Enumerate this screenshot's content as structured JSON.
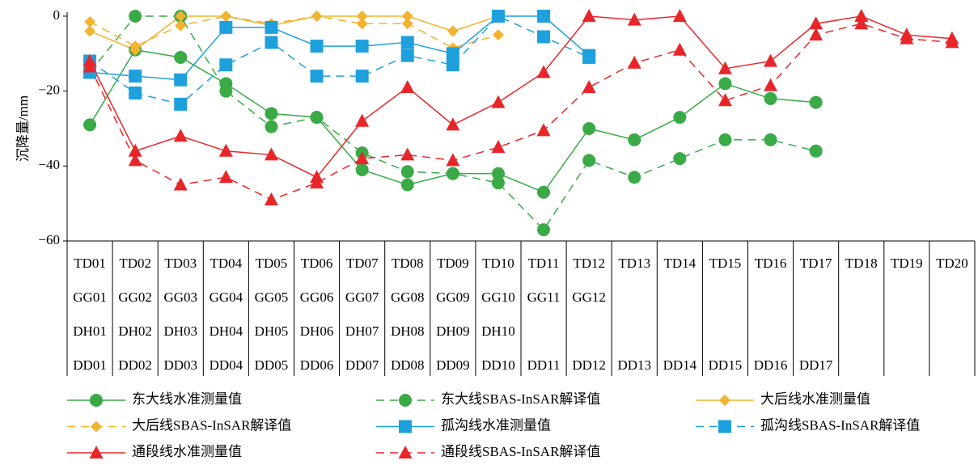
{
  "chart_data": {
    "type": "line",
    "y_label": "沉降量/mm",
    "categories": [
      "TD01",
      "TD02",
      "TD03",
      "TD04",
      "TD05",
      "TD06",
      "TD07",
      "TD08",
      "TD09",
      "TD10",
      "TD11",
      "TD12",
      "TD13",
      "TD14",
      "TD15",
      "TD16",
      "TD17",
      "TD18",
      "TD19",
      "TD20"
    ],
    "category_rows": [
      [
        "GG01",
        "GG02",
        "GG03",
        "GG04",
        "GG05",
        "GG06",
        "GG07",
        "GG08",
        "GG09",
        "GG10",
        "GG11",
        "GG12"
      ],
      [
        "DH01",
        "DH02",
        "DH03",
        "DH04",
        "DH05",
        "DH06",
        "DH07",
        "DH08",
        "DH09",
        "DH10"
      ],
      [
        "DD01",
        "DD02",
        "DD03",
        "DD04",
        "DD05",
        "DD06",
        "DD07",
        "DD08",
        "DD09",
        "DD10",
        "DD11",
        "DD12",
        "DD13",
        "DD14",
        "DD15",
        "DD16",
        "DD17"
      ]
    ],
    "ylim": [
      -60,
      0
    ],
    "yticks": [
      {
        "value": -60,
        "label": "−60"
      },
      {
        "value": -40,
        "label": "−40"
      },
      {
        "value": -20,
        "label": "−20"
      },
      0
    ],
    "series": [
      {
        "name": "东大线水准测量值",
        "color": "#3aaa47",
        "marker": "circle",
        "dashed": false,
        "values": [
          -29,
          -9,
          -11,
          -18,
          -26,
          -27,
          -41,
          -45,
          -42,
          -42,
          -47,
          -30,
          -33,
          -27,
          -18,
          -22,
          -23,
          null,
          null,
          null
        ]
      },
      {
        "name": "东大线SBAS-InSAR解译值",
        "color": "#3aaa47",
        "marker": "circle",
        "dashed": true,
        "values": [
          -15,
          0,
          0,
          -20,
          -29.5,
          -27,
          -36.5,
          -41.5,
          -42,
          -44.5,
          -57,
          -38.5,
          -43,
          -38,
          -33,
          -33,
          -36,
          null,
          null,
          null
        ]
      },
      {
        "name": "大后线水准测量值",
        "color": "#f2b32e",
        "marker": "diamond",
        "dashed": false,
        "values": [
          -4,
          -9,
          0,
          0,
          -2.5,
          0,
          0,
          0,
          -4,
          0,
          null,
          null,
          null,
          null,
          null,
          null,
          null,
          null,
          null,
          null
        ]
      },
      {
        "name": "大后线SBAS-InSAR解译值",
        "color": "#f2b32e",
        "marker": "diamond",
        "dashed": true,
        "values": [
          -1.5,
          -8,
          -2.5,
          0,
          -2,
          0,
          -2,
          -2,
          -8.5,
          -5,
          null,
          null,
          null,
          null,
          null,
          null,
          null,
          null,
          null,
          null
        ]
      },
      {
        "name": "孤沟线水准测量值",
        "color": "#1ea0dc",
        "marker": "square",
        "dashed": false,
        "values": [
          -15,
          -16,
          -17,
          -3,
          -3,
          -8,
          -8,
          -7,
          -10,
          0,
          0,
          -10.5,
          null,
          null,
          null,
          null,
          null,
          null,
          null,
          null
        ]
      },
      {
        "name": "孤沟线SBAS-InSAR解译值",
        "color": "#1ea0dc",
        "marker": "square",
        "dashed": true,
        "values": [
          -12,
          -20.5,
          -23.5,
          -13,
          -7,
          -16,
          -16,
          -10.5,
          -13,
          0,
          -5.5,
          -11,
          null,
          null,
          null,
          null,
          null,
          null,
          null,
          null
        ]
      },
      {
        "name": "通段线水准测量值",
        "color": "#e8262a",
        "marker": "triangle",
        "dashed": false,
        "values": [
          -12,
          -36,
          -32,
          -36,
          -37,
          -43,
          -28,
          -19,
          -29,
          -23,
          -15,
          0,
          -1,
          0,
          -14,
          -12,
          -2,
          0,
          -5,
          -6
        ]
      },
      {
        "name": "通段线SBAS-InSAR解译值",
        "color": "#e8262a",
        "marker": "triangle",
        "dashed": true,
        "values": [
          -13.5,
          -38.5,
          -45,
          -43,
          -49,
          -44.5,
          -38,
          -37,
          -38.5,
          -35,
          -30.5,
          -19,
          -12.5,
          -9,
          -22.5,
          -18.5,
          -5,
          -2,
          -6,
          -7
        ]
      }
    ]
  }
}
